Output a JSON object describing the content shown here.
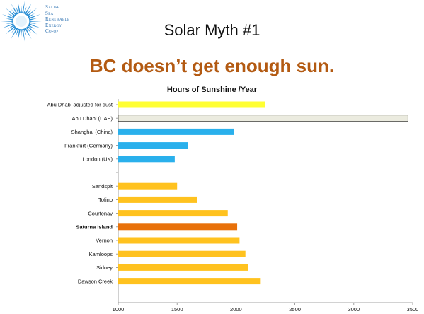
{
  "logo": {
    "lines": [
      "Salish",
      "Sea",
      "Renewable",
      "Energy",
      "Co-op"
    ],
    "colors": {
      "sun": "#2a8fd6",
      "text": "#2a6fb0"
    }
  },
  "slide": {
    "title": "Solar Myth #1",
    "subtitle": "BC doesn’t get enough sun."
  },
  "colors": {
    "subtitle": "#b35a12"
  },
  "chart_data": {
    "type": "bar",
    "orientation": "horizontal",
    "title": "Hours of Sunshine /Year",
    "xlabel": "",
    "ylabel": "",
    "xlim": [
      1000,
      3500
    ],
    "xticks": [
      1000,
      1500,
      2000,
      2500,
      3000,
      3500
    ],
    "grid": false,
    "legend": "none",
    "categories": [
      {
        "label": "Abu Dhabi adjusted for dust",
        "value": 2250,
        "color": "#ffff33"
      },
      {
        "label": "Abu Dhabi (UAE)",
        "value": 3460,
        "color": "#ebebdf"
      },
      {
        "label": "Shanghai (China)",
        "value": 1980,
        "color": "#2ab0ec"
      },
      {
        "label": "Frankfurt (Germany)",
        "value": 1590,
        "color": "#2ab0ec"
      },
      {
        "label": "London (UK)",
        "value": 1480,
        "color": "#2ab0ec"
      },
      {
        "label": "",
        "value": null,
        "color": ""
      },
      {
        "label": "Sandspit",
        "value": 1500,
        "color": "#ffc21f"
      },
      {
        "label": "Tofino",
        "value": 1670,
        "color": "#ffc21f"
      },
      {
        "label": "Courtenay",
        "value": 1930,
        "color": "#ffc21f"
      },
      {
        "label": "Saturna Island",
        "value": 2010,
        "color": "#e8710a",
        "bold": true
      },
      {
        "label": "Vernon",
        "value": 2030,
        "color": "#ffc21f"
      },
      {
        "label": "Kamloops",
        "value": 2080,
        "color": "#ffc21f"
      },
      {
        "label": "Sidney",
        "value": 2100,
        "color": "#ffc21f"
      },
      {
        "label": "Dawson Creek",
        "value": 2210,
        "color": "#ffc21f"
      }
    ]
  }
}
